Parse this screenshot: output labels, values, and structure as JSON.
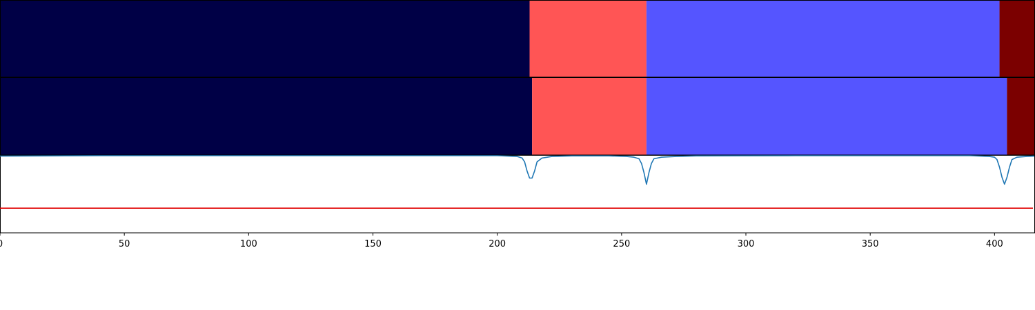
{
  "chart_data": [
    {
      "type": "bar",
      "subtype": "segmentation-strip",
      "xlim": [
        0,
        416
      ],
      "segments": [
        {
          "start": 0,
          "end": 213,
          "color": "#000046"
        },
        {
          "start": 213,
          "end": 260,
          "color": "#ff5555"
        },
        {
          "start": 260,
          "end": 402,
          "color": "#5555ff"
        },
        {
          "start": 402,
          "end": 416,
          "color": "#7b0000"
        }
      ]
    },
    {
      "type": "bar",
      "subtype": "segmentation-strip",
      "xlim": [
        0,
        416
      ],
      "segments": [
        {
          "start": 0,
          "end": 214,
          "color": "#000046"
        },
        {
          "start": 214,
          "end": 260,
          "color": "#ff5555"
        },
        {
          "start": 260,
          "end": 405,
          "color": "#5555ff"
        },
        {
          "start": 405,
          "end": 416,
          "color": "#7b0000"
        }
      ]
    },
    {
      "type": "line",
      "xlim": [
        0,
        416
      ],
      "ylim": [
        0,
        1
      ],
      "grid": false,
      "xticks": [
        0,
        50,
        100,
        150,
        200,
        250,
        300,
        350,
        400
      ],
      "xtick_labels": [
        "0",
        "50",
        "100",
        "150",
        "200",
        "250",
        "300",
        "350",
        "400"
      ],
      "threshold": {
        "y": 0.32,
        "color": "#e00000"
      },
      "series": [
        {
          "color": "#1f77b4",
          "x": [
            0,
            40,
            200,
            208,
            210,
            211,
            212,
            213,
            214,
            215,
            216,
            218,
            222,
            230,
            245,
            252,
            255,
            257,
            258,
            259,
            260,
            261,
            262,
            263,
            266,
            272,
            280,
            320,
            390,
            398,
            400,
            401,
            402,
            403,
            404,
            405,
            406,
            407,
            409,
            413,
            416
          ],
          "y": [
            0.995,
            1.0,
            1.0,
            0.99,
            0.97,
            0.92,
            0.8,
            0.71,
            0.71,
            0.8,
            0.92,
            0.97,
            0.99,
            0.997,
            0.997,
            0.99,
            0.98,
            0.96,
            0.9,
            0.78,
            0.63,
            0.78,
            0.9,
            0.96,
            0.98,
            0.99,
            0.997,
            1.0,
            1.0,
            0.99,
            0.98,
            0.95,
            0.85,
            0.72,
            0.63,
            0.72,
            0.85,
            0.95,
            0.98,
            0.99,
            0.995
          ]
        }
      ]
    }
  ]
}
